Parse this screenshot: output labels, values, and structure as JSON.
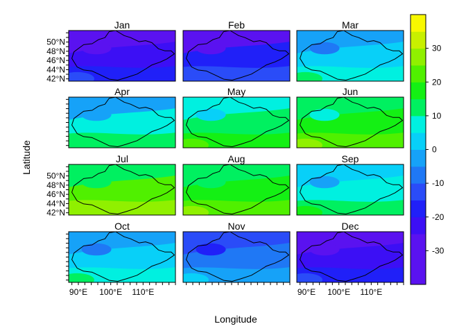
{
  "chart_data": {
    "type": "heatmap",
    "title": "",
    "xlabel": "Longitude",
    "ylabel": "Latitude",
    "panels": [
      {
        "name": "Jan",
        "level": -24
      },
      {
        "name": "Feb",
        "level": -20
      },
      {
        "name": "Mar",
        "level": 3
      },
      {
        "name": "Apr",
        "level": 5
      },
      {
        "name": "May",
        "level": 11
      },
      {
        "name": "Jun",
        "level": 16
      },
      {
        "name": "Jul",
        "level": 20
      },
      {
        "name": "Aug",
        "level": 19
      },
      {
        "name": "Sep",
        "level": 7
      },
      {
        "name": "Oct",
        "level": 2
      },
      {
        "name": "Nov",
        "level": -9
      },
      {
        "name": "Dec",
        "level": -21
      }
    ],
    "x_ticks": [
      "90°E",
      "100°E",
      "110°E"
    ],
    "y_ticks": [
      "42°N",
      "44°N",
      "46°N",
      "48°N",
      "50°N"
    ],
    "x_tick_values": [
      90,
      100,
      110
    ],
    "y_tick_values": [
      42,
      44,
      46,
      48,
      50
    ],
    "xlim": [
      87,
      120
    ],
    "ylim": [
      41.5,
      52.5
    ],
    "colorbar": {
      "ticks": [
        -30,
        -20,
        -10,
        0,
        10,
        20,
        30
      ],
      "range": [
        -40,
        40
      ],
      "step": 5,
      "colors": [
        "#5a12f0",
        "#3c0ff5",
        "#2020f8",
        "#2a4cf8",
        "#1f78f5",
        "#16a2f8",
        "#08d0f8",
        "#00f0e0",
        "#00f060",
        "#14f014",
        "#50f000",
        "#90f000",
        "#c8f000",
        "#f8f800",
        "#f8e030",
        "#f8d060",
        "#f8d890",
        "#fae0b8"
      ]
    },
    "grid": false,
    "legend": "right colorbar"
  }
}
